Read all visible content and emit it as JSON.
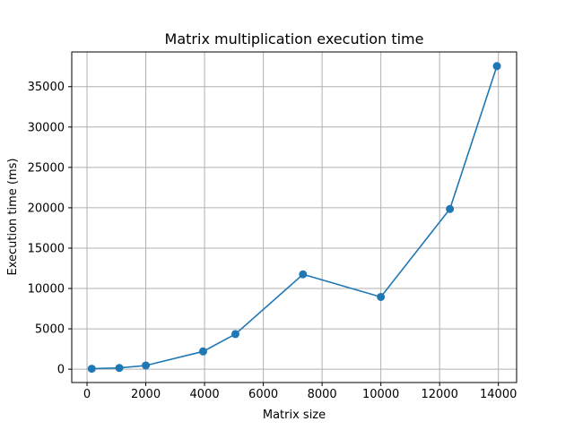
{
  "chart_data": {
    "type": "line",
    "title": "Matrix multiplication execution time",
    "xlabel": "Matrix size",
    "ylabel": "Execution time (ms)",
    "xlim": [
      -520,
      14620
    ],
    "ylim": [
      -1650,
      39300
    ],
    "xticks": [
      0,
      2000,
      4000,
      6000,
      8000,
      10000,
      12000,
      14000
    ],
    "xtick_labels": [
      "0",
      "2000",
      "4000",
      "6000",
      "8000",
      "10000",
      "12000",
      "14000"
    ],
    "yticks": [
      0,
      5000,
      10000,
      15000,
      20000,
      25000,
      30000,
      35000
    ],
    "ytick_labels": [
      "0",
      "5000",
      "10000",
      "15000",
      "20000",
      "25000",
      "30000",
      "35000"
    ],
    "grid": true,
    "series": [
      {
        "color": "#1f77b4",
        "marker": "circle",
        "x": [
          160,
          1100,
          2000,
          3950,
          5050,
          7350,
          10000,
          12350,
          13950
        ],
        "y": [
          60,
          160,
          460,
          2200,
          4350,
          11750,
          8950,
          19850,
          37550
        ]
      }
    ]
  }
}
